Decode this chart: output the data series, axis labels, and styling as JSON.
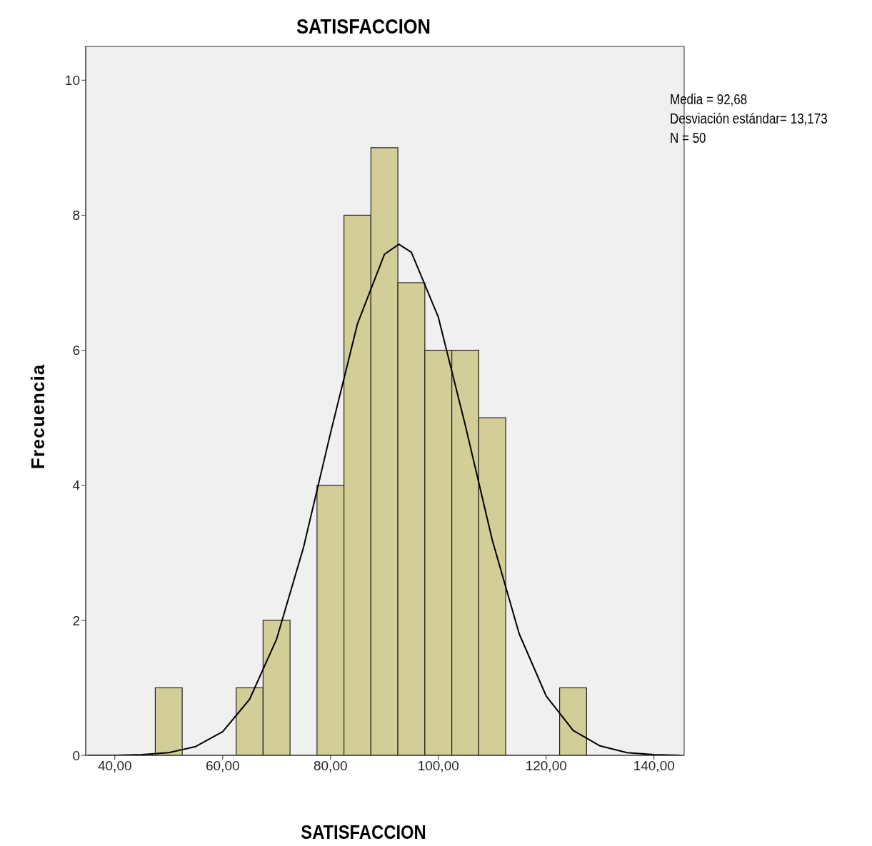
{
  "chart_data": {
    "type": "histogram",
    "title": "SATISFACCION",
    "xlabel": "SATISFACCION",
    "ylabel": "Frecuencia",
    "bins": [
      47.5,
      52.5,
      57.5,
      62.5,
      67.5,
      72.5,
      77.5,
      82.5,
      87.5,
      92.5,
      97.5,
      102.5,
      107.5,
      112.5,
      117.5,
      122.5,
      127.5
    ],
    "values": [
      1,
      0,
      0,
      1,
      2,
      0,
      4,
      8,
      9,
      7,
      6,
      6,
      5,
      0,
      0,
      1
    ],
    "color": "#d3ce97",
    "series": [
      {
        "type": "line",
        "color": "#000000",
        "x": [
          35,
          40,
          45,
          50,
          55,
          60,
          65,
          70,
          75,
          80,
          85,
          90,
          92.68,
          95,
          100,
          105,
          110,
          115,
          120,
          125,
          130,
          135,
          140,
          145
        ],
        "values": [
          0,
          0,
          0.01,
          0.04,
          0.13,
          0.35,
          0.83,
          1.72,
          3.08,
          4.77,
          6.39,
          7.42,
          7.57,
          7.45,
          6.49,
          4.89,
          3.19,
          1.8,
          0.88,
          0.37,
          0.14,
          0.04,
          0.01,
          0
        ]
      }
    ],
    "xlim": [
      34.6,
      145.6
    ],
    "xticks": [
      {
        "value": 40,
        "label": "40,00"
      },
      {
        "value": 60,
        "label": "60,00"
      },
      {
        "value": 80,
        "label": "80,00"
      },
      {
        "value": 100,
        "label": "100,00"
      },
      {
        "value": 120,
        "label": "120,00"
      },
      {
        "value": 140,
        "label": "140,00"
      }
    ],
    "ylim": [
      0,
      10.5
    ],
    "yticks": [
      0,
      2,
      4,
      6,
      8,
      10
    ],
    "annotations": [
      "Media = 92,68",
      "Desviación estándar= 13,173",
      "N = 50"
    ]
  }
}
